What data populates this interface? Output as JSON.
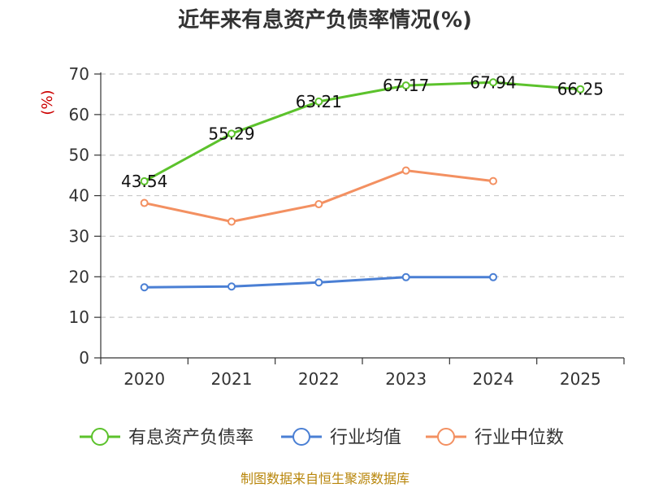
{
  "chart_data": {
    "type": "line",
    "title": "近年来有息资产负债率情况(%)",
    "ylabel": "(%)",
    "categories": [
      "2020",
      "2021",
      "2022",
      "2023",
      "2024",
      "2025"
    ],
    "ylim": [
      0,
      70
    ],
    "yticks": [
      0,
      10,
      20,
      30,
      40,
      50,
      60,
      70
    ],
    "grid": true,
    "legend_position": "bottom",
    "series": [
      {
        "name": "有息资产负债率",
        "color": "#5cc22c",
        "values": [
          43.54,
          55.29,
          63.21,
          67.17,
          67.94,
          66.25
        ],
        "labels": [
          "43.54",
          "55.29",
          "63.21",
          "67.17",
          "67.94",
          "66.25"
        ]
      },
      {
        "name": "行业均值",
        "color": "#4a7fd4",
        "values": [
          17.4,
          17.6,
          18.6,
          19.9,
          19.9,
          null
        ]
      },
      {
        "name": "行业中位数",
        "color": "#f39061",
        "values": [
          38.2,
          33.6,
          37.9,
          46.2,
          43.6,
          null
        ]
      }
    ],
    "source": "制图数据来自恒生聚源数据库"
  }
}
